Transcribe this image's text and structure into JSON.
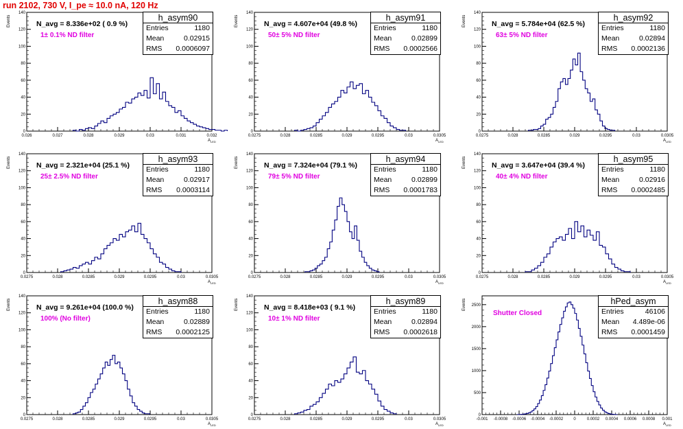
{
  "title": "run 2102,   730 V, I_pe ≈ 10.0 nA, 120 Hz",
  "y_axis_label": "Events",
  "x_axis_label": "A",
  "x_axis_label_sub": "LED",
  "colors": {
    "histogram": "#000080",
    "title": "#e00000",
    "filter_label": "#e000e0"
  },
  "panels": [
    {
      "name": "h_asym90",
      "navg": "N_avg = 8.336e+02 ( 0.9 %)",
      "filter": "1± 0.1% ND filter",
      "stats": [
        [
          "Entries",
          "1180"
        ],
        [
          "Mean",
          "0.02915"
        ],
        [
          "RMS",
          "0.0006097"
        ]
      ]
    },
    {
      "name": "h_asym91",
      "navg": "N_avg = 4.607e+04 (49.8 %)",
      "filter": "50± 5% ND filter",
      "stats": [
        [
          "Entries",
          "1180"
        ],
        [
          "Mean",
          "0.02899"
        ],
        [
          "RMS",
          "0.0002566"
        ]
      ]
    },
    {
      "name": "h_asym92",
      "navg": "N_avg = 5.784e+04 (62.5 %)",
      "filter": "63± 5% ND filter",
      "stats": [
        [
          "Entries",
          "1180"
        ],
        [
          "Mean",
          "0.02894"
        ],
        [
          "RMS",
          "0.0002136"
        ]
      ]
    },
    {
      "name": "h_asym93",
      "navg": "N_avg = 2.321e+04 (25.1 %)",
      "filter": "25± 2.5% ND filter",
      "stats": [
        [
          "Entries",
          "1180"
        ],
        [
          "Mean",
          "0.02917"
        ],
        [
          "RMS",
          "0.0003114"
        ]
      ]
    },
    {
      "name": "h_asym94",
      "navg": "N_avg = 7.324e+04 (79.1 %)",
      "filter": "79± 5% ND filter",
      "stats": [
        [
          "Entries",
          "1180"
        ],
        [
          "Mean",
          "0.02899"
        ],
        [
          "RMS",
          "0.0001783"
        ]
      ]
    },
    {
      "name": "h_asym95",
      "navg": "N_avg = 3.647e+04 (39.4 %)",
      "filter": "40± 4% ND filter",
      "stats": [
        [
          "Entries",
          "1180"
        ],
        [
          "Mean",
          "0.02916"
        ],
        [
          "RMS",
          "0.0002485"
        ]
      ]
    },
    {
      "name": "h_asym88",
      "navg": "N_avg = 9.261e+04 (100.0 %)",
      "filter": "100% (No filter)",
      "stats": [
        [
          "Entries",
          "1180"
        ],
        [
          "Mean",
          "0.02889"
        ],
        [
          "RMS",
          "0.0002125"
        ]
      ]
    },
    {
      "name": "h_asym89",
      "navg": "N_avg = 8.418e+03 ( 9.1 %)",
      "filter": "10± 1% ND filter",
      "stats": [
        [
          "Entries",
          "1180"
        ],
        [
          "Mean",
          "0.02894"
        ],
        [
          "RMS",
          "0.0002618"
        ]
      ]
    },
    {
      "name": "hPed_asym",
      "navg": "",
      "filter": "Shutter Closed",
      "stats": [
        [
          "Entries",
          "46106"
        ],
        [
          "Mean",
          "4.489e-06"
        ],
        [
          "RMS",
          "0.0001459"
        ]
      ]
    }
  ],
  "chart_data": [
    {
      "type": "bar",
      "name": "h_asym90",
      "xlim": [
        0.026,
        0.032
      ],
      "ylim": [
        0,
        140
      ],
      "xticks": [
        "0.026",
        "0.027",
        "0.028",
        "0.029",
        "0.03",
        "0.031",
        "0.032"
      ],
      "xtick_values": [
        0.026,
        0.027,
        0.028,
        0.029,
        0.03,
        0.031,
        0.032
      ],
      "yticks": [
        "0",
        "20",
        "40",
        "60",
        "80",
        "100",
        "120",
        "140"
      ],
      "ytick_values": [
        0,
        20,
        40,
        60,
        80,
        100,
        120,
        140
      ],
      "bin_width": 0.0001,
      "x_start": 0.0275,
      "values": [
        1,
        0,
        2,
        1,
        3,
        4,
        3,
        6,
        9,
        12,
        10,
        15,
        18,
        20,
        22,
        26,
        28,
        34,
        33,
        38,
        40,
        45,
        42,
        48,
        39,
        63,
        44,
        56,
        38,
        46,
        35,
        30,
        28,
        22,
        24,
        18,
        15,
        12,
        10,
        8,
        6,
        5,
        4,
        3,
        2,
        2,
        1,
        1,
        0,
        1
      ]
    },
    {
      "type": "bar",
      "name": "h_asym91",
      "xlim": [
        0.0275,
        0.0305
      ],
      "ylim": [
        0,
        140
      ],
      "xticks": [
        "0.0275",
        "0.028",
        "0.0285",
        "0.029",
        "0.0295",
        "0.03",
        "0.0305"
      ],
      "xtick_values": [
        0.0275,
        0.028,
        0.0285,
        0.029,
        0.0295,
        0.03,
        0.0305
      ],
      "yticks": [
        "0",
        "20",
        "40",
        "60",
        "80",
        "100",
        "120",
        "140"
      ],
      "ytick_values": [
        0,
        20,
        40,
        60,
        80,
        100,
        120,
        140
      ],
      "bin_width": 5e-05,
      "x_start": 0.02815,
      "values": [
        1,
        0,
        1,
        2,
        3,
        4,
        6,
        10,
        14,
        18,
        22,
        28,
        32,
        35,
        40,
        48,
        45,
        52,
        58,
        50,
        54,
        56,
        44,
        48,
        40,
        34,
        30,
        24,
        18,
        15,
        10,
        6,
        4,
        2,
        1,
        1
      ]
    },
    {
      "type": "bar",
      "name": "h_asym92",
      "xlim": [
        0.0275,
        0.0305
      ],
      "ylim": [
        0,
        140
      ],
      "xticks": [
        "0.0275",
        "0.028",
        "0.0285",
        "0.029",
        "0.0295",
        "0.03",
        "0.0305"
      ],
      "xtick_values": [
        0.0275,
        0.028,
        0.0285,
        0.029,
        0.0295,
        0.03,
        0.0305
      ],
      "yticks": [
        "0",
        "20",
        "40",
        "60",
        "80",
        "100",
        "120",
        "140"
      ],
      "ytick_values": [
        0,
        20,
        40,
        60,
        80,
        100,
        120,
        140
      ],
      "bin_width": 4e-05,
      "x_start": 0.02825,
      "values": [
        1,
        1,
        2,
        2,
        3,
        6,
        8,
        14,
        16,
        20,
        28,
        35,
        50,
        58,
        62,
        55,
        62,
        72,
        85,
        78,
        92,
        70,
        60,
        50,
        45,
        35,
        38,
        25,
        20,
        12,
        6,
        3,
        2,
        1,
        1
      ]
    },
    {
      "type": "bar",
      "name": "h_asym93",
      "xlim": [
        0.0275,
        0.0305
      ],
      "ylim": [
        0,
        140
      ],
      "xticks": [
        "0.0275",
        "0.028",
        "0.0285",
        "0.029",
        "0.0295",
        "0.03",
        "0.0305"
      ],
      "xtick_values": [
        0.0275,
        0.028,
        0.0285,
        0.029,
        0.0295,
        0.03,
        0.0305
      ],
      "yticks": [
        "0",
        "20",
        "40",
        "60",
        "80",
        "100",
        "120",
        "140"
      ],
      "ytick_values": [
        0,
        20,
        40,
        60,
        80,
        100,
        120,
        140
      ],
      "bin_width": 5e-05,
      "x_start": 0.02805,
      "values": [
        1,
        2,
        3,
        4,
        6,
        5,
        8,
        10,
        12,
        10,
        14,
        18,
        16,
        22,
        28,
        32,
        35,
        40,
        38,
        45,
        42,
        48,
        50,
        55,
        48,
        58,
        45,
        40,
        35,
        28,
        22,
        18,
        12,
        10,
        6,
        4,
        2,
        1,
        1
      ]
    },
    {
      "type": "bar",
      "name": "h_asym94",
      "xlim": [
        0.0275,
        0.0305
      ],
      "ylim": [
        0,
        140
      ],
      "xticks": [
        "0.0275",
        "0.028",
        "0.0285",
        "0.029",
        "0.0295",
        "0.03",
        "0.0305"
      ],
      "xtick_values": [
        0.0275,
        0.028,
        0.0285,
        0.029,
        0.0295,
        0.03,
        0.0305
      ],
      "yticks": [
        "0",
        "20",
        "40",
        "60",
        "80",
        "100",
        "120",
        "140"
      ],
      "ytick_values": [
        0,
        20,
        40,
        60,
        80,
        100,
        120,
        140
      ],
      "bin_width": 4e-05,
      "x_start": 0.02832,
      "values": [
        1,
        1,
        2,
        3,
        5,
        8,
        10,
        14,
        18,
        28,
        36,
        50,
        62,
        78,
        88,
        80,
        72,
        60,
        48,
        40,
        55,
        38,
        25,
        18,
        12,
        8,
        5,
        3,
        2,
        1
      ]
    },
    {
      "type": "bar",
      "name": "h_asym95",
      "xlim": [
        0.0275,
        0.0305
      ],
      "ylim": [
        0,
        140
      ],
      "xticks": [
        "0.0275",
        "0.028",
        "0.0285",
        "0.029",
        "0.0295",
        "0.03",
        "0.0305"
      ],
      "xtick_values": [
        0.0275,
        0.028,
        0.0285,
        0.029,
        0.0295,
        0.03,
        0.0305
      ],
      "yticks": [
        "0",
        "20",
        "40",
        "60",
        "80",
        "100",
        "120",
        "140"
      ],
      "ytick_values": [
        0,
        20,
        40,
        60,
        80,
        100,
        120,
        140
      ],
      "bin_width": 5e-05,
      "x_start": 0.0282,
      "values": [
        1,
        1,
        3,
        5,
        8,
        12,
        18,
        22,
        30,
        36,
        40,
        42,
        38,
        45,
        52,
        40,
        60,
        48,
        55,
        42,
        50,
        44,
        38,
        48,
        32,
        30,
        22,
        16,
        10,
        6,
        4,
        2,
        1,
        1
      ]
    },
    {
      "type": "bar",
      "name": "h_asym88",
      "xlim": [
        0.0275,
        0.0305
      ],
      "ylim": [
        0,
        140
      ],
      "xticks": [
        "0.0275",
        "0.028",
        "0.0285",
        "0.029",
        "0.0295",
        "0.03",
        "0.0305"
      ],
      "xtick_values": [
        0.0275,
        0.028,
        0.0285,
        0.029,
        0.0295,
        0.03,
        0.0305
      ],
      "yticks": [
        "0",
        "20",
        "40",
        "60",
        "80",
        "100",
        "120",
        "140"
      ],
      "ytick_values": [
        0,
        20,
        40,
        60,
        80,
        100,
        120,
        140
      ],
      "bin_width": 4e-05,
      "x_start": 0.02825,
      "values": [
        1,
        2,
        3,
        6,
        10,
        14,
        20,
        26,
        30,
        36,
        42,
        48,
        55,
        62,
        58,
        65,
        70,
        60,
        62,
        55,
        48,
        40,
        30,
        22,
        14,
        10,
        6,
        4,
        2,
        1,
        1
      ]
    },
    {
      "type": "bar",
      "name": "h_asym89",
      "xlim": [
        0.0275,
        0.0305
      ],
      "ylim": [
        0,
        140
      ],
      "xticks": [
        "0.0275",
        "0.028",
        "0.0285",
        "0.029",
        "0.0295",
        "0.03",
        "0.0305"
      ],
      "xtick_values": [
        0.0275,
        0.028,
        0.0285,
        0.029,
        0.0295,
        0.03,
        0.0305
      ],
      "yticks": [
        "0",
        "20",
        "40",
        "60",
        "80",
        "100",
        "120",
        "140"
      ],
      "ytick_values": [
        0,
        20,
        40,
        60,
        80,
        100,
        120,
        140
      ],
      "bin_width": 5e-05,
      "x_start": 0.02815,
      "values": [
        1,
        2,
        3,
        5,
        6,
        10,
        12,
        15,
        20,
        25,
        30,
        36,
        34,
        40,
        38,
        42,
        48,
        55,
        62,
        68,
        50,
        48,
        52,
        40,
        36,
        30,
        24,
        16,
        10,
        6,
        4,
        2,
        1
      ]
    },
    {
      "type": "bar",
      "name": "hPed_asym",
      "xlim": [
        -0.001,
        0.001
      ],
      "ylim": [
        0,
        2700
      ],
      "xticks": [
        "-0.001",
        "-0.0008",
        "-0.0006",
        "-0.0004",
        "-0.0002",
        "0",
        "0.0002",
        "0.0004",
        "0.0006",
        "0.0008",
        "0.001"
      ],
      "xtick_values": [
        -0.001,
        -0.0008,
        -0.0006,
        -0.0004,
        -0.0002,
        0,
        0.0002,
        0.0004,
        0.0006,
        0.0008,
        0.001
      ],
      "yticks": [
        "0",
        "500",
        "1000",
        "1500",
        "2000",
        "2500"
      ],
      "ytick_values": [
        0,
        500,
        1000,
        1500,
        2000,
        2500
      ],
      "bin_width": 2e-05,
      "x_start": -0.00062,
      "values": [
        2,
        4,
        6,
        10,
        16,
        26,
        40,
        60,
        90,
        130,
        180,
        250,
        330,
        430,
        550,
        680,
        830,
        990,
        1160,
        1340,
        1520,
        1700,
        1880,
        2050,
        2200,
        2350,
        2450,
        2540,
        2560,
        2500,
        2420,
        2300,
        2150,
        1960,
        1780,
        1580,
        1380,
        1180,
        990,
        820,
        660,
        520,
        400,
        300,
        220,
        150,
        100,
        64,
        40,
        24,
        14,
        8,
        4,
        2
      ]
    }
  ]
}
